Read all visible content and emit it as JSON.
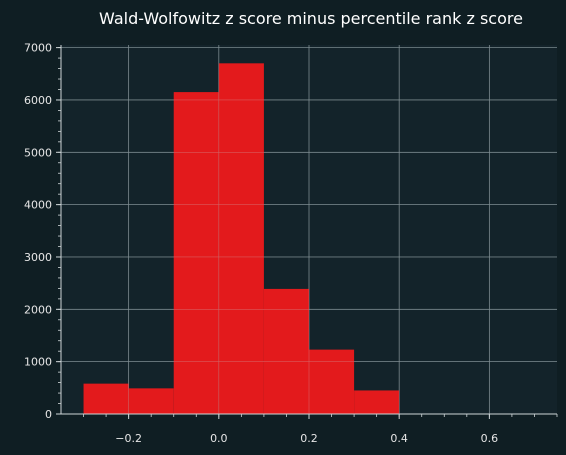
{
  "chart_data": {
    "type": "bar",
    "title": "Wald-Wolfowitz z score minus percentile rank z score",
    "xlabel": "",
    "ylabel": "",
    "bins": [
      {
        "start": -0.3,
        "end": -0.2,
        "value": 580
      },
      {
        "start": -0.2,
        "end": -0.1,
        "value": 490
      },
      {
        "start": -0.1,
        "end": 0.0,
        "value": 6150
      },
      {
        "start": 0.0,
        "end": 0.1,
        "value": 6700
      },
      {
        "start": 0.1,
        "end": 0.2,
        "value": 2390
      },
      {
        "start": 0.2,
        "end": 0.3,
        "value": 1230
      },
      {
        "start": 0.3,
        "end": 0.4,
        "value": 450
      }
    ],
    "xlim": [
      -0.35,
      0.75
    ],
    "ylim": [
      0,
      7050
    ],
    "xticks": [
      -0.2,
      0.0,
      0.2,
      0.4,
      0.6
    ],
    "xtick_labels": [
      "−0.2",
      "0.0",
      "0.2",
      "0.4",
      "0.6"
    ],
    "yticks": [
      0,
      1000,
      2000,
      3000,
      4000,
      5000,
      6000,
      7000
    ],
    "ytick_labels": [
      "0",
      "1000",
      "2000",
      "3000",
      "4000",
      "5000",
      "6000",
      "7000"
    ],
    "grid": true,
    "legend": "none",
    "colors": {
      "bar": "#e31a1c",
      "background": "#0f1e23",
      "plot_background": "#13232a",
      "grid": "#5d6d72",
      "axis": "#cfd6d8",
      "text": "#e6e6e6"
    }
  }
}
